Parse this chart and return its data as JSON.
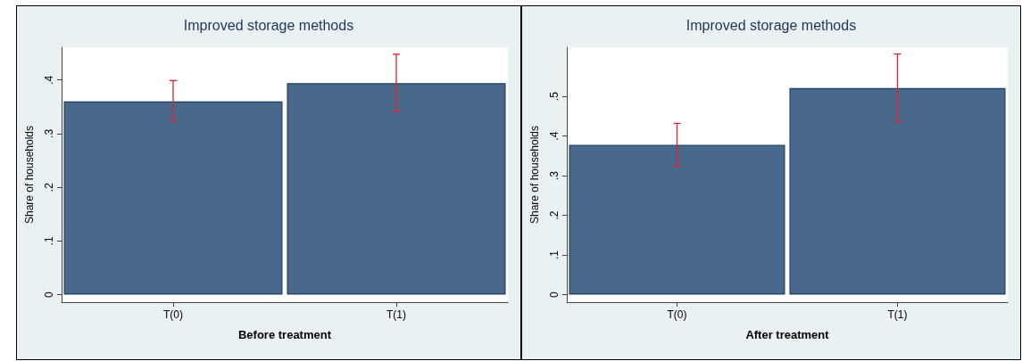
{
  "chart_data": [
    {
      "type": "bar",
      "title": "Improved storage methods",
      "xlabel": "Before treatment",
      "ylabel": "Share of households",
      "categories": [
        "T(0)",
        "T(1)"
      ],
      "values": [
        0.36,
        0.394
      ],
      "color": "#48698c",
      "errors": [
        [
          0.323,
          0.399
        ],
        [
          0.341,
          0.448
        ]
      ],
      "ylim": [
        -0.014,
        0.461
      ],
      "yticks": [
        {
          "value": 0,
          "label": "0"
        },
        {
          "value": 0.1,
          "label": ".1"
        },
        {
          "value": 0.2,
          "label": ".2"
        },
        {
          "value": 0.3,
          "label": ".3"
        },
        {
          "value": 0.4,
          "label": ".4"
        }
      ]
    },
    {
      "type": "bar",
      "title": "Improved storage methods",
      "xlabel": "After treatment",
      "ylabel": "Share of households",
      "categories": [
        "T(0)",
        "T(1)"
      ],
      "values": [
        0.378,
        0.521
      ],
      "color": "#48698c",
      "errors": [
        [
          0.324,
          0.432
        ],
        [
          0.436,
          0.607
        ]
      ],
      "ylim": [
        -0.019,
        0.624
      ],
      "yticks": [
        {
          "value": 0,
          "label": "0"
        },
        {
          "value": 0.1,
          "label": ".1"
        },
        {
          "value": 0.2,
          "label": ".2"
        },
        {
          "value": 0.3,
          "label": ".3"
        },
        {
          "value": 0.4,
          "label": ".4"
        },
        {
          "value": 0.5,
          "label": ".5"
        }
      ]
    }
  ]
}
